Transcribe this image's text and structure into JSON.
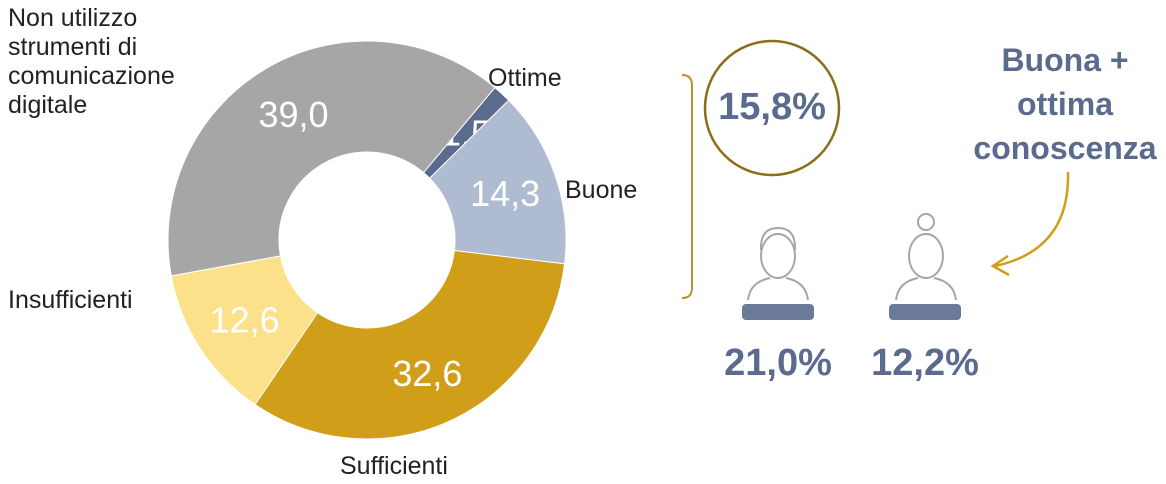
{
  "chart_data": {
    "type": "donut",
    "categories": [
      "Ottime",
      "Buone",
      "Sufficienti",
      "Insufficienti",
      "Non utilizzo\nstrumenti di\ncomunicazione\ndigitale"
    ],
    "values": [
      1.5,
      14.3,
      32.6,
      12.6,
      39.0
    ],
    "value_labels": [
      "1,5",
      "14,3",
      "32,6",
      "12,6",
      "39,0"
    ],
    "colors": [
      "#5b6b8e",
      "#aebbd1",
      "#d19e1a",
      "#fde08a",
      "#a6a6a6"
    ]
  },
  "callout": {
    "highlight": "15,8%",
    "note": "Buona +\nottima\nconoscenza",
    "groups": [
      "21,0%",
      "12,2%"
    ]
  }
}
